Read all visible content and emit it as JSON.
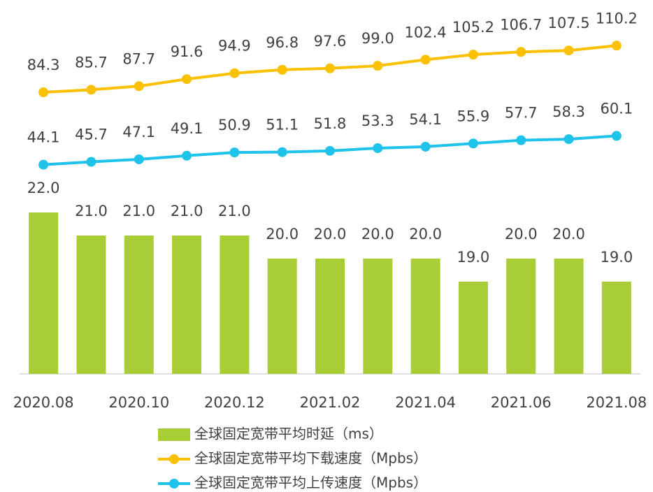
{
  "chart_data": {
    "type": "combo",
    "categories": [
      "2020.08",
      null,
      "2020.10",
      null,
      "2020.12",
      null,
      "2021.02",
      null,
      "2021.04",
      null,
      "2021.06",
      null,
      "2021.08"
    ],
    "ylim": [
      15,
      30
    ],
    "y2lim": [
      -72,
      120
    ],
    "series": [
      {
        "name": "全球固定宽带平均时延（ms）",
        "type": "bar",
        "color": "#a9cd37",
        "values": [
          22,
          21,
          21,
          21,
          21,
          20,
          20,
          20,
          20,
          19,
          20,
          20,
          19
        ],
        "value_labels": [
          "22.0",
          "21.0",
          "21.0",
          "21.0",
          "21.0",
          "20.0",
          "20.0",
          "20.0",
          "20.0",
          "19.0",
          "20.0",
          "20.0",
          "19.0"
        ]
      },
      {
        "name": "全球固定宽带平均下载速度（Mpbs）",
        "type": "line",
        "axis": "y2",
        "color": "#fbc000",
        "values": [
          84.3,
          85.7,
          87.7,
          91.6,
          94.9,
          96.8,
          97.6,
          99.0,
          102.4,
          105.2,
          106.7,
          107.5,
          110.2
        ],
        "value_labels": [
          "84.3",
          "85.7",
          "87.7",
          "91.6",
          "94.9",
          "96.8",
          "97.6",
          "99.0",
          "102.4",
          "105.2",
          "106.7",
          "107.5",
          "110.2"
        ]
      },
      {
        "name": "全球固定宽带平均上传速度（Mpbs）",
        "type": "line",
        "axis": "y2",
        "color": "#1fc3ea",
        "values": [
          44.1,
          45.7,
          47.1,
          49.1,
          50.9,
          51.1,
          51.8,
          53.3,
          54.1,
          55.9,
          57.7,
          58.3,
          60.1
        ],
        "value_labels": [
          "44.1",
          "45.7",
          "47.1",
          "49.1",
          "50.9",
          "51.1",
          "51.8",
          "53.3",
          "54.1",
          "55.9",
          "57.7",
          "58.3",
          "60.1"
        ]
      }
    ]
  }
}
